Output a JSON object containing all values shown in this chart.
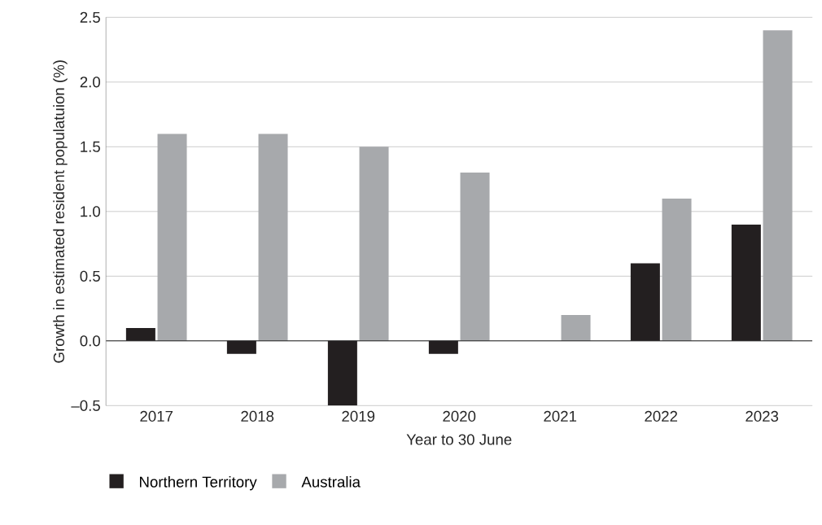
{
  "chart_data": {
    "type": "bar",
    "categories": [
      "2017",
      "2018",
      "2019",
      "2020",
      "2021",
      "2022",
      "2023"
    ],
    "series": [
      {
        "name": "Northern Territory",
        "color": "#231f20",
        "values": [
          0.1,
          -0.1,
          -0.5,
          -0.1,
          0.0,
          0.6,
          0.9
        ]
      },
      {
        "name": "Australia",
        "color": "#a7a9ac",
        "values": [
          1.6,
          1.6,
          1.5,
          1.3,
          0.2,
          1.1,
          2.4
        ]
      }
    ],
    "xlabel": "Year to 30 June",
    "ylabel": "Growth in estimated resident populatuion (%)",
    "ylim": [
      -0.5,
      2.5
    ],
    "yticks": [
      {
        "value": -0.5,
        "label": "–0.5"
      },
      {
        "value": 0,
        "label": "0.0"
      },
      0.5,
      {
        "value": 1,
        "label": "1.0"
      },
      1.5,
      {
        "value": 2,
        "label": "2.0"
      },
      2.5
    ],
    "grid": "y",
    "legend": "bottom"
  }
}
